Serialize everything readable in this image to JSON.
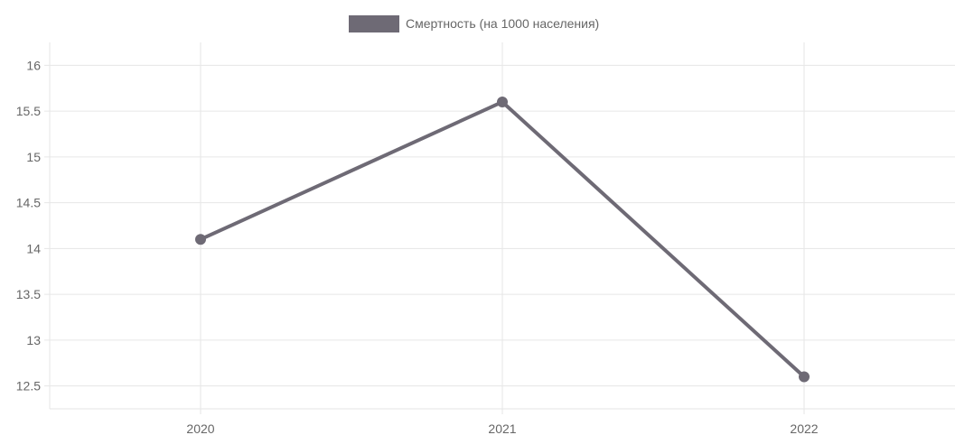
{
  "chart_data": {
    "type": "line",
    "categories": [
      "2020",
      "2021",
      "2022"
    ],
    "series": [
      {
        "name": "Смертность (на 1000 населения)",
        "values": [
          14.1,
          15.6,
          12.6
        ]
      }
    ],
    "title": "",
    "xlabel": "",
    "ylabel": "",
    "ylim": [
      12.25,
      16.25
    ],
    "yticks": [
      12.5,
      13,
      13.5,
      14,
      14.5,
      15,
      15.5,
      16
    ],
    "grid": true,
    "legend": "top-center",
    "colors": {
      "series": "#6e6a75",
      "grid": "#e6e6e6",
      "axis_text": "#666666"
    }
  }
}
